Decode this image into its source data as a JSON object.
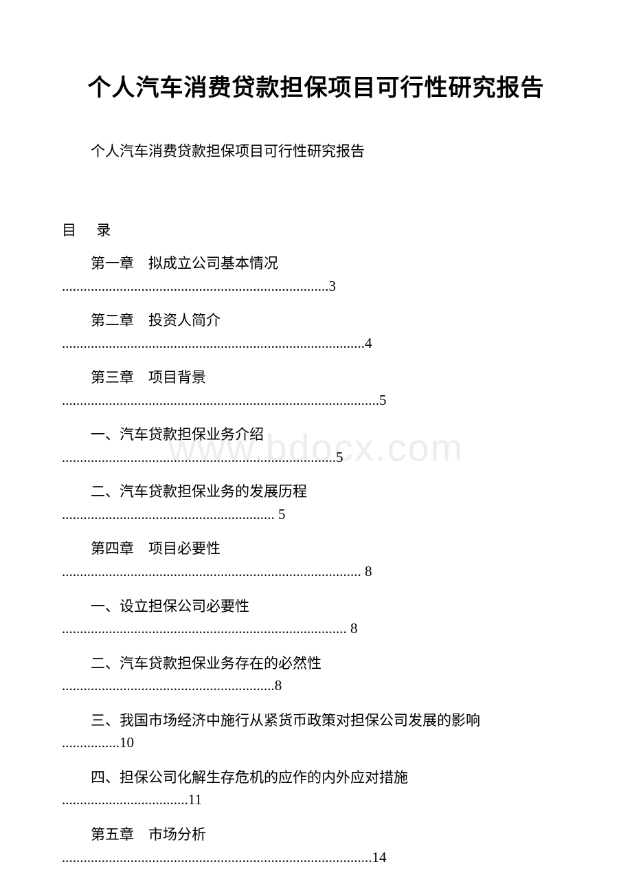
{
  "document": {
    "main_title": "个人汽车消费贷款担保项目可行性研究报告",
    "subtitle": "个人汽车消费贷款担保项目可行性研究报告",
    "toc_title": "目 录",
    "watermark": "www.bdocx.com",
    "text_color": "#000000",
    "background_color": "#ffffff",
    "watermark_color": "#ededed",
    "title_fontsize": 34,
    "body_fontsize": 21,
    "toc_entries": [
      {
        "label": "第一章　拟成立公司基本情况",
        "dots": "..........................................................................3"
      },
      {
        "label": "第二章　投资人简介",
        "dots": "....................................................................................4"
      },
      {
        "label": "第三章　项目背景",
        "dots": "........................................................................................5"
      },
      {
        "label": "一、汽车贷款担保业务介绍",
        "dots": "............................................................................5"
      },
      {
        "label": "二、汽车贷款担保业务的发展历程",
        "dots": "........................................................... 5"
      },
      {
        "label": "第四章　项目必要性",
        "dots": "................................................................................... 8"
      },
      {
        "label": "一、设立担保公司必要性",
        "dots": "............................................................................... 8"
      },
      {
        "label": "二、汽车贷款担保业务存在的必然性",
        "dots": "...........................................................8"
      },
      {
        "label": "三、我国市场经济中施行从紧货币政策对担保公司发展的影响",
        "dots": "................10"
      },
      {
        "label": "四、担保公司化解生存危机的应作的内外应对措施",
        "dots": "...................................11"
      },
      {
        "label": "第五章　市场分析",
        "dots": "......................................................................................14"
      }
    ]
  }
}
